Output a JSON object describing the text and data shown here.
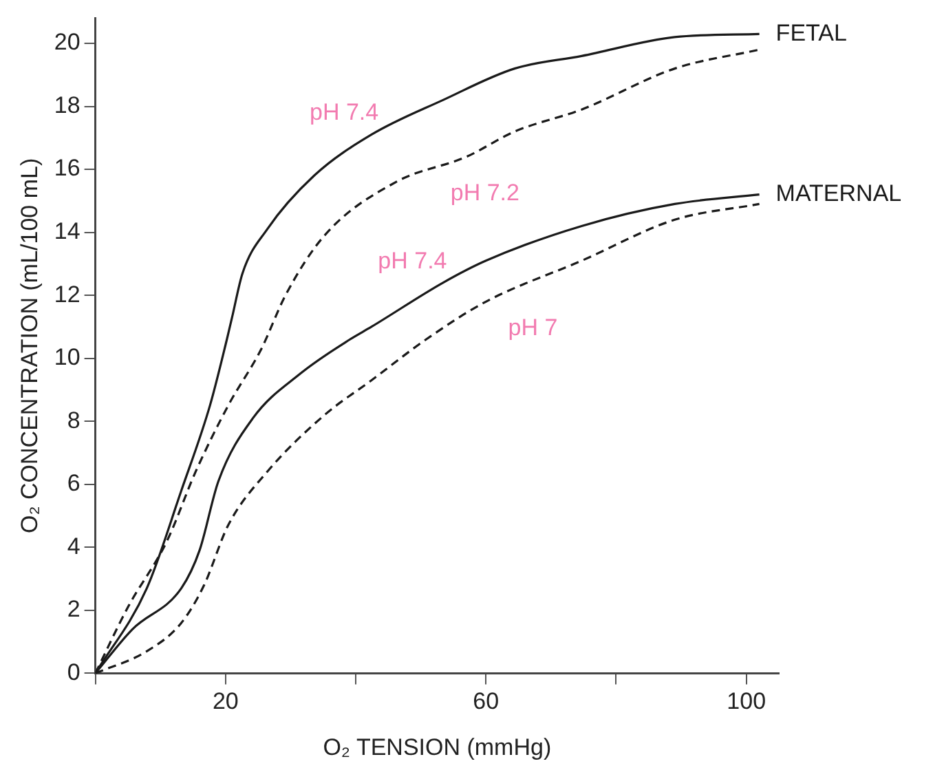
{
  "chart_data": {
    "type": "line",
    "xlabel": "O₂ TENSION (mmHg)",
    "ylabel": "O₂ CONCENTRATION (mL/100 mL)",
    "xlim": [
      0,
      105
    ],
    "xticks": [
      {
        "value": 0,
        "label": null
      },
      20,
      {
        "value": 40,
        "label": null
      },
      60,
      {
        "value": 80,
        "label": null
      },
      100
    ],
    "ylim": [
      0,
      20.8
    ],
    "yticks": [
      0,
      2,
      4,
      6,
      8,
      10,
      12,
      14,
      16,
      18,
      20
    ],
    "grid": false,
    "legend": false,
    "marker": "none",
    "series": [
      {
        "name": "pH 7.4",
        "color": "#1a1a1a",
        "line_style": "solid",
        "x": [
          0,
          7.9,
          13.2,
          17.6,
          20.2,
          21,
          22.6,
          26.4,
          33.6,
          42.4,
          53.4,
          64.4,
          74.7,
          89,
          102
        ],
        "values": [
          0,
          2.7,
          5.8,
          8.5,
          10.6,
          11.3,
          12.7,
          14.1,
          15.8,
          17.1,
          18.2,
          19.2,
          19.6,
          20.2,
          20.3
        ]
      },
      {
        "name": "pH 7.2",
        "color": "#1a1a1a",
        "line_style": "dashed",
        "x": [
          0,
          5,
          11,
          15.4,
          20.4,
          25.5,
          29.2,
          35.2,
          46.2,
          57,
          64.4,
          74.7,
          89,
          102
        ],
        "values": [
          0,
          2.1,
          4.2,
          6.4,
          8.5,
          10.3,
          12,
          13.9,
          15.6,
          16.4,
          17.2,
          17.9,
          19.2,
          19.8
        ]
      },
      {
        "name": "pH 7.4",
        "color": "#1a1a1a",
        "line_style": "solid",
        "x": [
          0,
          5.7,
          13.2,
          16,
          18.9,
          24.2,
          31.4,
          39.1,
          42.4,
          53.4,
          60,
          74.7,
          89,
          102
        ],
        "values": [
          0,
          1.4,
          2.7,
          3.9,
          6.1,
          8.1,
          9.5,
          10.6,
          11,
          12.4,
          13.1,
          14.2,
          14.9,
          15.2
        ]
      },
      {
        "name": "pH 7",
        "color": "#1a1a1a",
        "line_style": "dashed",
        "x": [
          0,
          7.9,
          13.2,
          16.7,
          20.4,
          26.4,
          35.2,
          42.4,
          50.8,
          60,
          74.7,
          89,
          102
        ],
        "values": [
          0,
          0.7,
          1.6,
          2.8,
          4.7,
          6.4,
          8.2,
          9.3,
          10.6,
          11.8,
          13.1,
          14.4,
          14.9
        ]
      }
    ],
    "annotations": [
      {
        "text": "FETAL",
        "x": 102,
        "y": 20.3
      },
      {
        "text": "MATERNAL",
        "x": 102,
        "y": 15.2
      }
    ]
  }
}
